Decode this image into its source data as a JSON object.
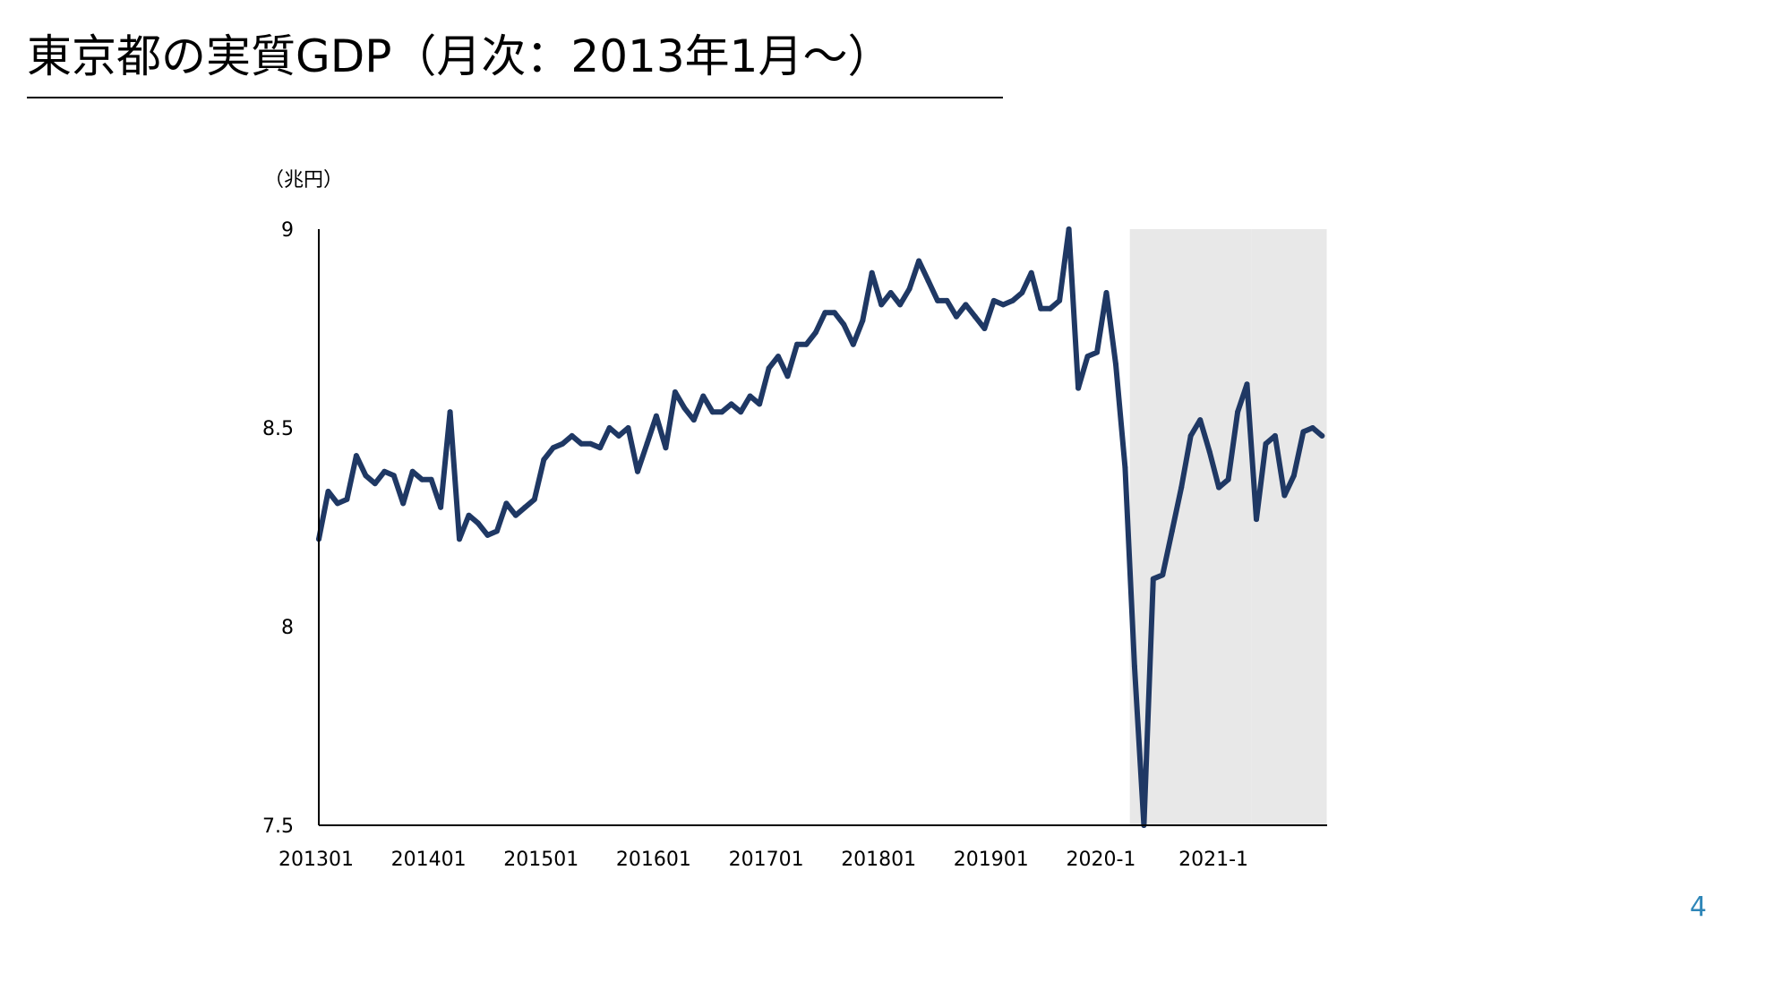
{
  "slide": {
    "title": "東京都の実質GDP（月次：2013年1月～）",
    "page_number": "4"
  },
  "colors": {
    "line": "#1f3864",
    "shade": "#e8e8e8",
    "axis": "#000000",
    "page_number": "#2e86b8"
  },
  "chart_data": {
    "type": "line",
    "title": "",
    "ylabel": "（兆円）",
    "xlabel": "",
    "ylim": [
      7.5,
      9
    ],
    "y_ticks": [
      "9",
      "8.5",
      "8",
      "7.5"
    ],
    "y_tick_values": [
      9,
      8.5,
      8,
      7.5
    ],
    "x_ticks": [
      "201301",
      "201401",
      "201501",
      "201601",
      "201701",
      "201801",
      "201901",
      "2020-1",
      "2021-1"
    ],
    "x_tick_month_index": [
      0,
      12,
      24,
      36,
      48,
      60,
      72,
      84,
      96
    ],
    "grid": false,
    "legend": "none",
    "shaded_periods": [
      {
        "start": "2020-04",
        "end": "2021-04"
      },
      {
        "start": "2021-05",
        "end": "2021-12"
      }
    ],
    "series": [
      {
        "x_start": "2013-01",
        "values": [
          8.22,
          8.34,
          8.31,
          8.32,
          8.43,
          8.38,
          8.36,
          8.39,
          8.38,
          8.31,
          8.39,
          8.37,
          8.37,
          8.3,
          8.54,
          8.22,
          8.28,
          8.26,
          8.23,
          8.24,
          8.31,
          8.28,
          8.3,
          8.32,
          8.42,
          8.45,
          8.46,
          8.48,
          8.46,
          8.46,
          8.45,
          8.5,
          8.48,
          8.5,
          8.39,
          8.46,
          8.53,
          8.45,
          8.59,
          8.55,
          8.52,
          8.58,
          8.54,
          8.54,
          8.56,
          8.54,
          8.58,
          8.56,
          8.65,
          8.68,
          8.63,
          8.71,
          8.71,
          8.74,
          8.79,
          8.79,
          8.76,
          8.71,
          8.77,
          8.89,
          8.81,
          8.84,
          8.81,
          8.85,
          8.92,
          8.87,
          8.82,
          8.82,
          8.78,
          8.81,
          8.78,
          8.75,
          8.82,
          8.81,
          8.82,
          8.84,
          8.89,
          8.8,
          8.8,
          8.82,
          9.0,
          8.6,
          8.68,
          8.69,
          8.84,
          8.66,
          8.4,
          7.9,
          7.5,
          8.12,
          8.13,
          8.24,
          8.35,
          8.48,
          8.52,
          8.44,
          8.35,
          8.37,
          8.54,
          8.61,
          8.27,
          8.46,
          8.48,
          8.33,
          8.38,
          8.49,
          8.5,
          8.48
        ]
      }
    ]
  }
}
